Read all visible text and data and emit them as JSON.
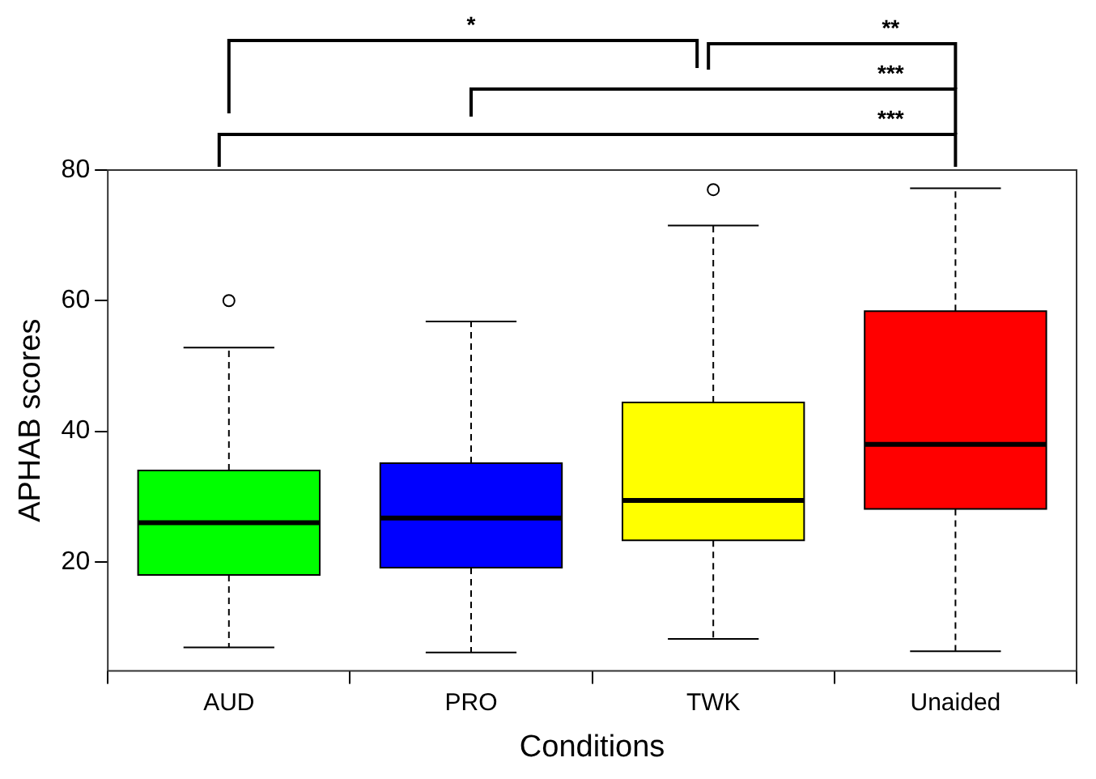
{
  "chart_data": {
    "type": "box",
    "xlabel": "Conditions",
    "ylabel": "APHAB scores",
    "categories": [
      "AUD",
      "PRO",
      "TWK",
      "Unaided"
    ],
    "colors": [
      "#00ff00",
      "#0000ff",
      "#ffff00",
      "#ff0000"
    ],
    "boxes": [
      {
        "low": 6.9,
        "q1": 18,
        "median": 26,
        "q3": 34,
        "high": 52.8,
        "outliers": [
          60
        ]
      },
      {
        "low": 6.1,
        "q1": 19.1,
        "median": 26.7,
        "q3": 35.1,
        "high": 56.8
      },
      {
        "low": 8.2,
        "q1": 23.3,
        "median": 29.4,
        "q3": 44.4,
        "high": 71.5,
        "outliers": [
          77
        ]
      },
      {
        "low": 6.3,
        "q1": 28.1,
        "median": 38,
        "q3": 58.4,
        "high": 77.2
      }
    ],
    "ylim": [
      3.3,
      80
    ],
    "yticks": [
      20,
      40,
      60,
      80
    ],
    "grid": false,
    "legend": false,
    "annotations": [
      "*",
      "**",
      "***",
      "***"
    ]
  }
}
